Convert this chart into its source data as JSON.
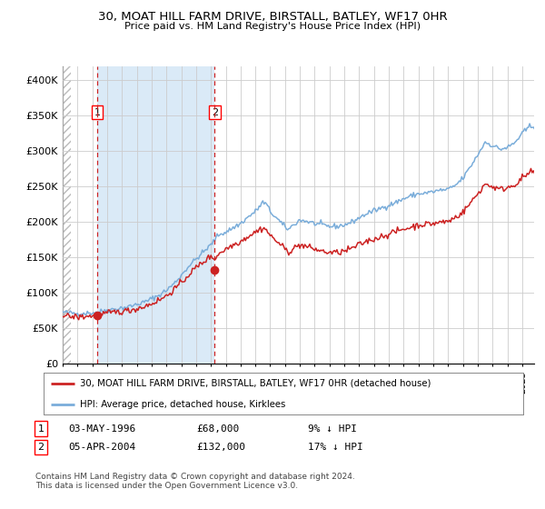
{
  "title": "30, MOAT HILL FARM DRIVE, BIRSTALL, BATLEY, WF17 0HR",
  "subtitle": "Price paid vs. HM Land Registry's House Price Index (HPI)",
  "ylim": [
    0,
    420000
  ],
  "yticks": [
    0,
    50000,
    100000,
    150000,
    200000,
    250000,
    300000,
    350000,
    400000
  ],
  "ytick_labels": [
    "£0",
    "£50K",
    "£100K",
    "£150K",
    "£200K",
    "£250K",
    "£300K",
    "£350K",
    "£400K"
  ],
  "xlim_start": 1994.0,
  "xlim_end": 2025.8,
  "sale1_date": 1996.34,
  "sale1_price": 68000,
  "sale2_date": 2004.26,
  "sale2_price": 132000,
  "shaded_start": 1996.34,
  "shaded_end": 2004.26,
  "legend_line1": "30, MOAT HILL FARM DRIVE, BIRSTALL, BATLEY, WF17 0HR (detached house)",
  "legend_line2": "HPI: Average price, detached house, Kirklees",
  "footer": "Contains HM Land Registry data © Crown copyright and database right 2024.\nThis data is licensed under the Open Government Licence v3.0.",
  "hpi_color": "#7aadda",
  "price_color": "#cc2222",
  "bg_color": "#ffffff",
  "plot_bg_color": "#ffffff",
  "shaded_color": "#daeaf7",
  "grid_color": "#cccccc",
  "hatch_color": "#bbbbbb",
  "label1": "1",
  "label2": "2",
  "date1": "03-MAY-1996",
  "price1": "£68,000",
  "pct1": "9% ↓ HPI",
  "date2": "05-APR-2004",
  "price2": "£132,000",
  "pct2": "17% ↓ HPI"
}
